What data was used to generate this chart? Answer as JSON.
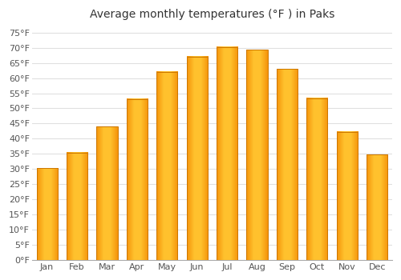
{
  "title": "Average monthly temperatures (°F ) in Paks",
  "months": [
    "Jan",
    "Feb",
    "Mar",
    "Apr",
    "May",
    "Jun",
    "Jul",
    "Aug",
    "Sep",
    "Oct",
    "Nov",
    "Dec"
  ],
  "values": [
    30.2,
    35.4,
    44.1,
    53.1,
    62.1,
    67.1,
    70.3,
    69.4,
    63.1,
    53.4,
    42.3,
    34.7
  ],
  "bar_color_center": "#FFB92E",
  "bar_color_edge": "#F5930A",
  "background_color": "#FFFFFF",
  "grid_color": "#E0E0E0",
  "ylim": [
    0,
    77
  ],
  "yticks": [
    0,
    5,
    10,
    15,
    20,
    25,
    30,
    35,
    40,
    45,
    50,
    55,
    60,
    65,
    70,
    75
  ],
  "title_fontsize": 10,
  "tick_fontsize": 8
}
